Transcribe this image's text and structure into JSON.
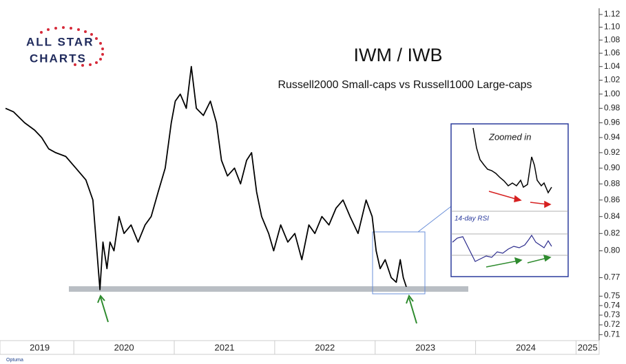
{
  "logo": {
    "line1": "ALL STAR",
    "line2": "CHARTS"
  },
  "watermark": "Optuma",
  "chart_data": {
    "type": "line",
    "title": "IWM / IWB",
    "subtitle": "Russell2000 Small-caps vs Russell1000 Large-caps",
    "inset_title": "Zoomed in",
    "inset_rsi_label": "14-day RSI",
    "color": "#000000",
    "log_scale": true,
    "grid": false,
    "x": [
      2019.32,
      2019.4,
      2019.51,
      2019.61,
      2019.68,
      2019.75,
      2019.82,
      2019.92,
      2020.02,
      2020.12,
      2020.19,
      2020.23,
      2020.26,
      2020.29,
      2020.33,
      2020.36,
      2020.4,
      2020.45,
      2020.5,
      2020.57,
      2020.64,
      2020.71,
      2020.77,
      2020.84,
      2020.91,
      2020.97,
      2021.01,
      2021.06,
      2021.12,
      2021.17,
      2021.22,
      2021.29,
      2021.36,
      2021.42,
      2021.47,
      2021.53,
      2021.6,
      2021.66,
      2021.72,
      2021.77,
      2021.82,
      2021.87,
      2021.94,
      2021.99,
      2022.06,
      2022.13,
      2022.2,
      2022.27,
      2022.34,
      2022.4,
      2022.47,
      2022.54,
      2022.61,
      2022.68,
      2022.75,
      2022.83,
      2022.91,
      2022.97,
      2023.01,
      2023.05,
      2023.1,
      2023.16,
      2023.21,
      2023.25,
      2023.28,
      2023.31
    ],
    "values": [
      0.98,
      0.975,
      0.96,
      0.95,
      0.94,
      0.925,
      0.92,
      0.915,
      0.9,
      0.885,
      0.86,
      0.8,
      0.757,
      0.81,
      0.78,
      0.81,
      0.8,
      0.84,
      0.82,
      0.83,
      0.81,
      0.83,
      0.84,
      0.87,
      0.9,
      0.96,
      0.99,
      1.0,
      0.98,
      1.04,
      0.98,
      0.97,
      0.99,
      0.96,
      0.91,
      0.89,
      0.9,
      0.88,
      0.91,
      0.92,
      0.87,
      0.84,
      0.82,
      0.8,
      0.83,
      0.81,
      0.82,
      0.79,
      0.83,
      0.82,
      0.84,
      0.83,
      0.85,
      0.86,
      0.84,
      0.82,
      0.86,
      0.84,
      0.8,
      0.78,
      0.79,
      0.77,
      0.765,
      0.79,
      0.77,
      0.76
    ],
    "xlim": [
      2019.32,
      2025.23
    ],
    "xticks": [
      2019,
      2020,
      2021,
      2022,
      2023,
      2024,
      2025
    ],
    "ylim": [
      0.704,
      1.13
    ],
    "yticks": [
      1.12,
      {
        "value": 1.1,
        "label": "1.10"
      },
      1.08,
      1.06,
      1.04,
      1.02,
      {
        "value": 1,
        "label": "1.00"
      },
      0.98,
      0.96,
      0.94,
      0.92,
      {
        "value": 0.9,
        "label": "0.90"
      },
      0.88,
      0.86,
      0.84,
      0.82,
      {
        "value": 0.8,
        "label": "0.80"
      },
      0.77,
      0.75,
      0.74,
      0.73,
      0.72,
      0.71
    ]
  }
}
